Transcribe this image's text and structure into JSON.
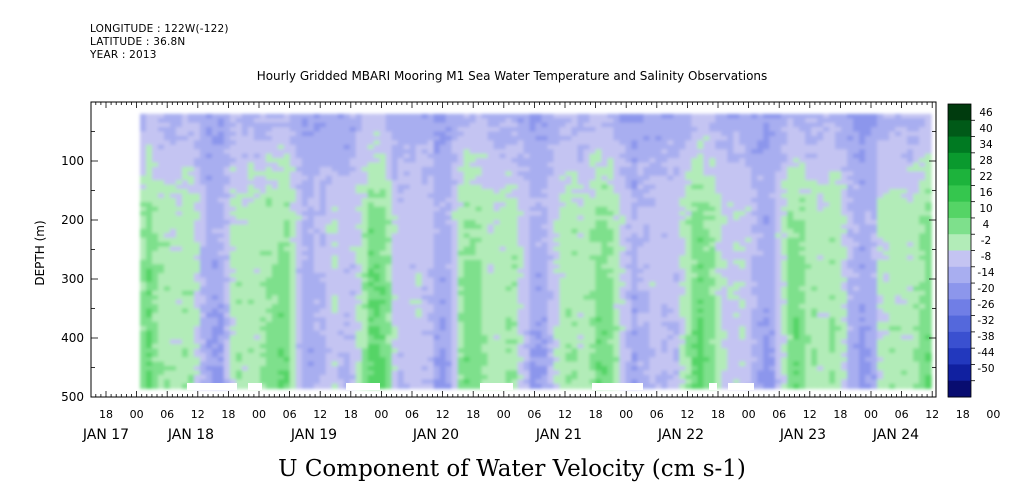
{
  "header": {
    "longitude": "LONGITUDE : 122W(-122)",
    "latitude": "LATITUDE : 36.8N",
    "year": "YEAR : 2013"
  },
  "chart_data": {
    "type": "heatmap",
    "title": "Hourly Gridded MBARI Mooring M1 Sea Water Temperature and Salinity Observations",
    "xlabel": "",
    "ylabel": "DEPTH (m)",
    "caption": "U Component of Water Velocity (cm s-1)",
    "y_axis": {
      "reversed": true,
      "ylim": [
        0,
        500
      ],
      "tick_labels": [
        "100",
        "200",
        "300",
        "400",
        "500"
      ],
      "tick_values": [
        100,
        200,
        300,
        400,
        500
      ]
    },
    "x_axis": {
      "tick_hour_labels": [
        "18",
        "00",
        "06",
        "12",
        "18",
        "00",
        "06",
        "12",
        "18",
        "00",
        "06",
        "12",
        "18",
        "00",
        "06",
        "12",
        "18",
        "00",
        "06",
        "12",
        "18",
        "00",
        "06",
        "12",
        "18",
        "00",
        "06",
        "12",
        "18",
        "00",
        "06",
        "12"
      ],
      "day_labels": [
        "JAN 17",
        "JAN 18",
        "JAN 19",
        "JAN 20",
        "JAN 21",
        "JAN 22",
        "JAN 23",
        "JAN 24"
      ]
    },
    "colorbar": {
      "labels": [
        "46",
        "40",
        "34",
        "28",
        "22",
        "16",
        "10",
        "4",
        "-2",
        "-8",
        "-14",
        "-20",
        "-26",
        "-32",
        "-38",
        "-44",
        "-50"
      ],
      "colors_top_to_bottom": [
        "#003b0e",
        "#005a18",
        "#007a22",
        "#0a9a2e",
        "#1db33c",
        "#35c64e",
        "#55d466",
        "#7ee08c",
        "#b2ecb8",
        "#c4c4f2",
        "#a8aef0",
        "#8c96ec",
        "#707ee6",
        "#5468dc",
        "#3a50d0",
        "#2238be",
        "#1020a0",
        "#080c70"
      ]
    },
    "data_summary": "U velocity field, depth 20-485 m, Jan 17 18:00 to Jan 24 12:00 2013; mostly -10 to +16 cm/s; negative (blue) dominant in upper 200 m, alternating positive (green) vertical bands below."
  }
}
